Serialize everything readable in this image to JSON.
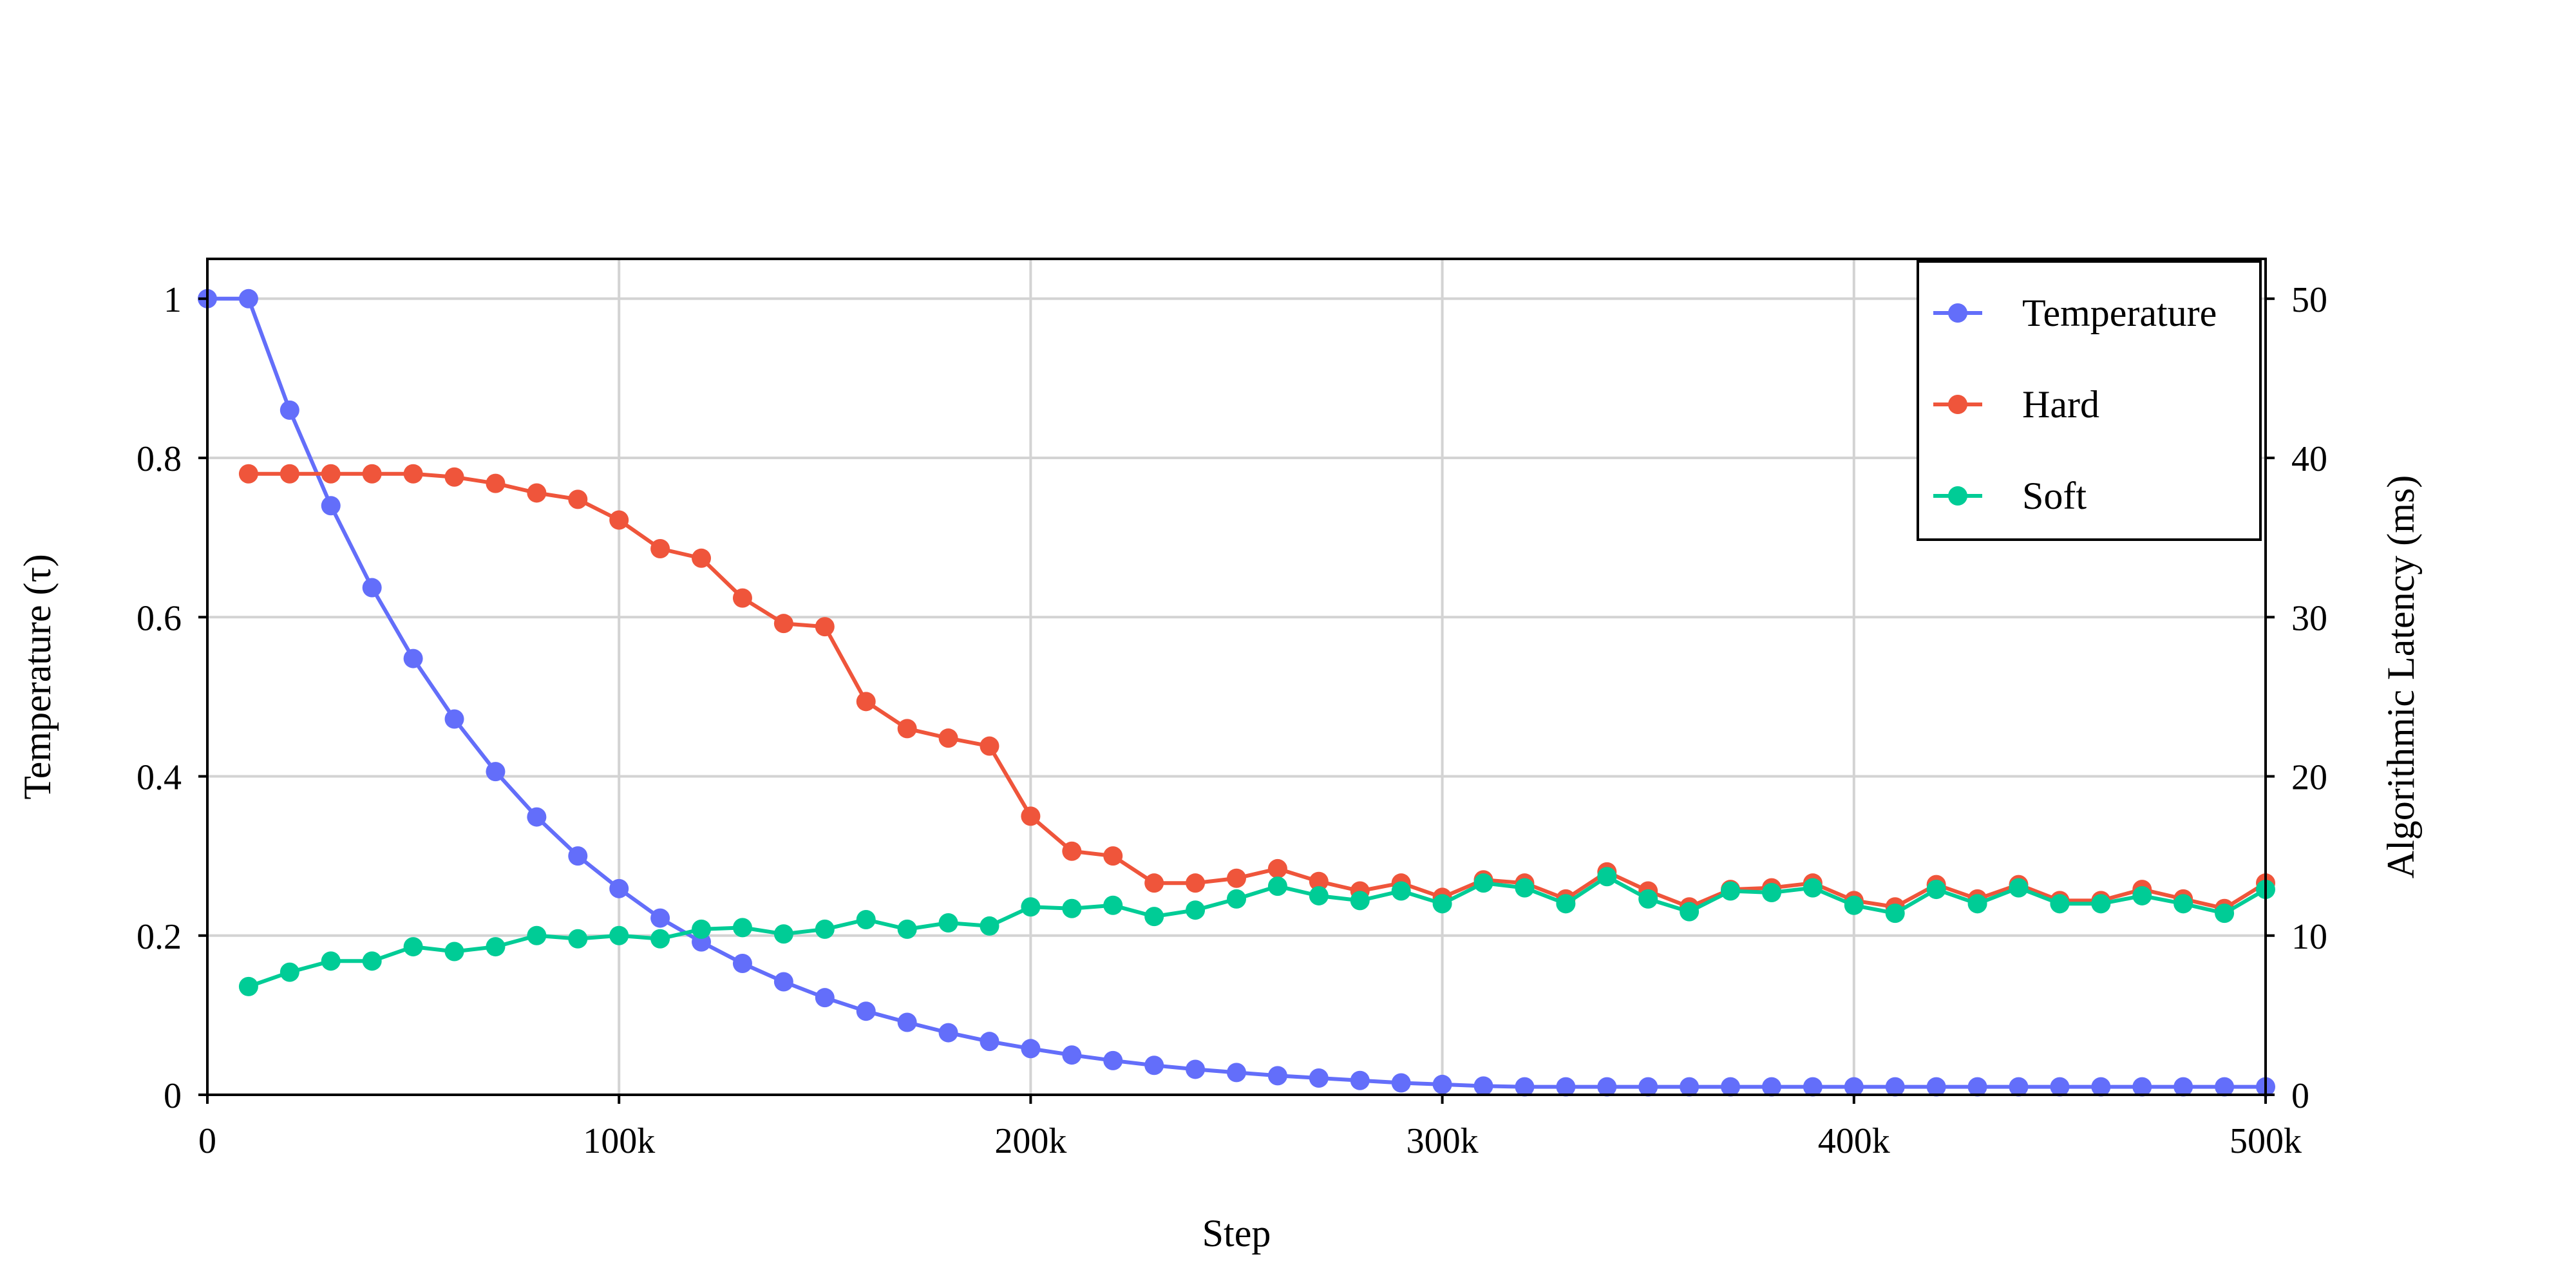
{
  "chart_data": {
    "type": "line",
    "xlabel": "Step",
    "ylabel_left": "Temperature (τ)",
    "ylabel_right": "Algorithmic Latency (ms)",
    "x_range": [
      0,
      500000
    ],
    "y_left_range": [
      0,
      1.05
    ],
    "y_right_range": [
      0,
      52.5
    ],
    "x_ticks": [
      0,
      100000,
      200000,
      300000,
      400000,
      500000
    ],
    "x_tick_labels": [
      "0",
      "100k",
      "200k",
      "300k",
      "400k",
      "500k"
    ],
    "y_left_ticks": [
      0,
      0.2,
      0.4,
      0.6,
      0.8,
      1
    ],
    "y_left_tick_labels": [
      "0",
      "0.2",
      "0.4",
      "0.6",
      "0.8",
      "1"
    ],
    "y_right_ticks": [
      0,
      10,
      20,
      30,
      40,
      50
    ],
    "y_right_tick_labels": [
      "0",
      "10",
      "20",
      "30",
      "40",
      "50"
    ],
    "grid": true,
    "legend_position": "top-right",
    "series": [
      {
        "name": "Temperature",
        "axis": "left",
        "color": "#636efa",
        "x": [
          0,
          10000,
          20000,
          30000,
          40000,
          50000,
          60000,
          70000,
          80000,
          90000,
          100000,
          110000,
          120000,
          130000,
          140000,
          150000,
          160000,
          170000,
          180000,
          190000,
          200000,
          210000,
          220000,
          230000,
          240000,
          250000,
          260000,
          270000,
          280000,
          290000,
          300000,
          310000,
          320000,
          330000,
          340000,
          350000,
          360000,
          370000,
          380000,
          390000,
          400000,
          410000,
          420000,
          430000,
          440000,
          450000,
          460000,
          470000,
          480000,
          490000,
          500000
        ],
        "y": [
          1.0,
          1.0,
          0.86,
          0.74,
          0.637,
          0.548,
          0.472,
          0.406,
          0.349,
          0.3,
          0.259,
          0.222,
          0.192,
          0.165,
          0.142,
          0.122,
          0.105,
          0.091,
          0.078,
          0.067,
          0.058,
          0.05,
          0.043,
          0.037,
          0.032,
          0.028,
          0.024,
          0.021,
          0.018,
          0.015,
          0.013,
          0.011,
          0.01,
          0.01,
          0.01,
          0.01,
          0.01,
          0.01,
          0.01,
          0.01,
          0.01,
          0.01,
          0.01,
          0.01,
          0.01,
          0.01,
          0.01,
          0.01,
          0.01,
          0.01,
          0.01
        ]
      },
      {
        "name": "Hard",
        "axis": "right",
        "color": "#ef553b",
        "x": [
          10000,
          20000,
          30000,
          40000,
          50000,
          60000,
          70000,
          80000,
          90000,
          100000,
          110000,
          120000,
          130000,
          140000,
          150000,
          160000,
          170000,
          180000,
          190000,
          200000,
          210000,
          220000,
          230000,
          240000,
          250000,
          260000,
          270000,
          280000,
          290000,
          300000,
          310000,
          320000,
          330000,
          340000,
          350000,
          360000,
          370000,
          380000,
          390000,
          400000,
          410000,
          420000,
          430000,
          440000,
          450000,
          460000,
          470000,
          480000,
          490000,
          500000
        ],
        "y": [
          39.0,
          39.0,
          39.0,
          39.0,
          39.0,
          38.8,
          38.4,
          37.8,
          37.4,
          36.1,
          34.3,
          33.7,
          31.2,
          29.6,
          29.4,
          24.7,
          23.0,
          22.4,
          21.9,
          17.5,
          15.3,
          15.0,
          13.3,
          13.3,
          13.6,
          14.2,
          13.4,
          12.8,
          13.3,
          12.4,
          13.5,
          13.3,
          12.3,
          14.0,
          12.8,
          11.8,
          12.9,
          13.0,
          13.3,
          12.2,
          11.8,
          13.2,
          12.3,
          13.2,
          12.2,
          12.2,
          12.9,
          12.3,
          11.7,
          13.3
        ]
      },
      {
        "name": "Soft",
        "axis": "right",
        "color": "#00cc96",
        "x": [
          10000,
          20000,
          30000,
          40000,
          50000,
          60000,
          70000,
          80000,
          90000,
          100000,
          110000,
          120000,
          130000,
          140000,
          150000,
          160000,
          170000,
          180000,
          190000,
          200000,
          210000,
          220000,
          230000,
          240000,
          250000,
          260000,
          270000,
          280000,
          290000,
          300000,
          310000,
          320000,
          330000,
          340000,
          350000,
          360000,
          370000,
          380000,
          390000,
          400000,
          410000,
          420000,
          430000,
          440000,
          450000,
          460000,
          470000,
          480000,
          490000,
          500000
        ],
        "y": [
          6.8,
          7.7,
          8.4,
          8.4,
          9.3,
          9.0,
          9.3,
          10.0,
          9.8,
          10.0,
          9.8,
          10.4,
          10.5,
          10.1,
          10.4,
          11.0,
          10.4,
          10.8,
          10.6,
          11.8,
          11.7,
          11.9,
          11.2,
          11.6,
          12.3,
          13.1,
          12.5,
          12.2,
          12.8,
          12.0,
          13.3,
          13.0,
          12.0,
          13.7,
          12.3,
          11.5,
          12.8,
          12.7,
          13.0,
          11.9,
          11.4,
          12.9,
          12.0,
          13.0,
          12.0,
          12.0,
          12.5,
          12.0,
          11.4,
          12.9
        ]
      }
    ]
  }
}
